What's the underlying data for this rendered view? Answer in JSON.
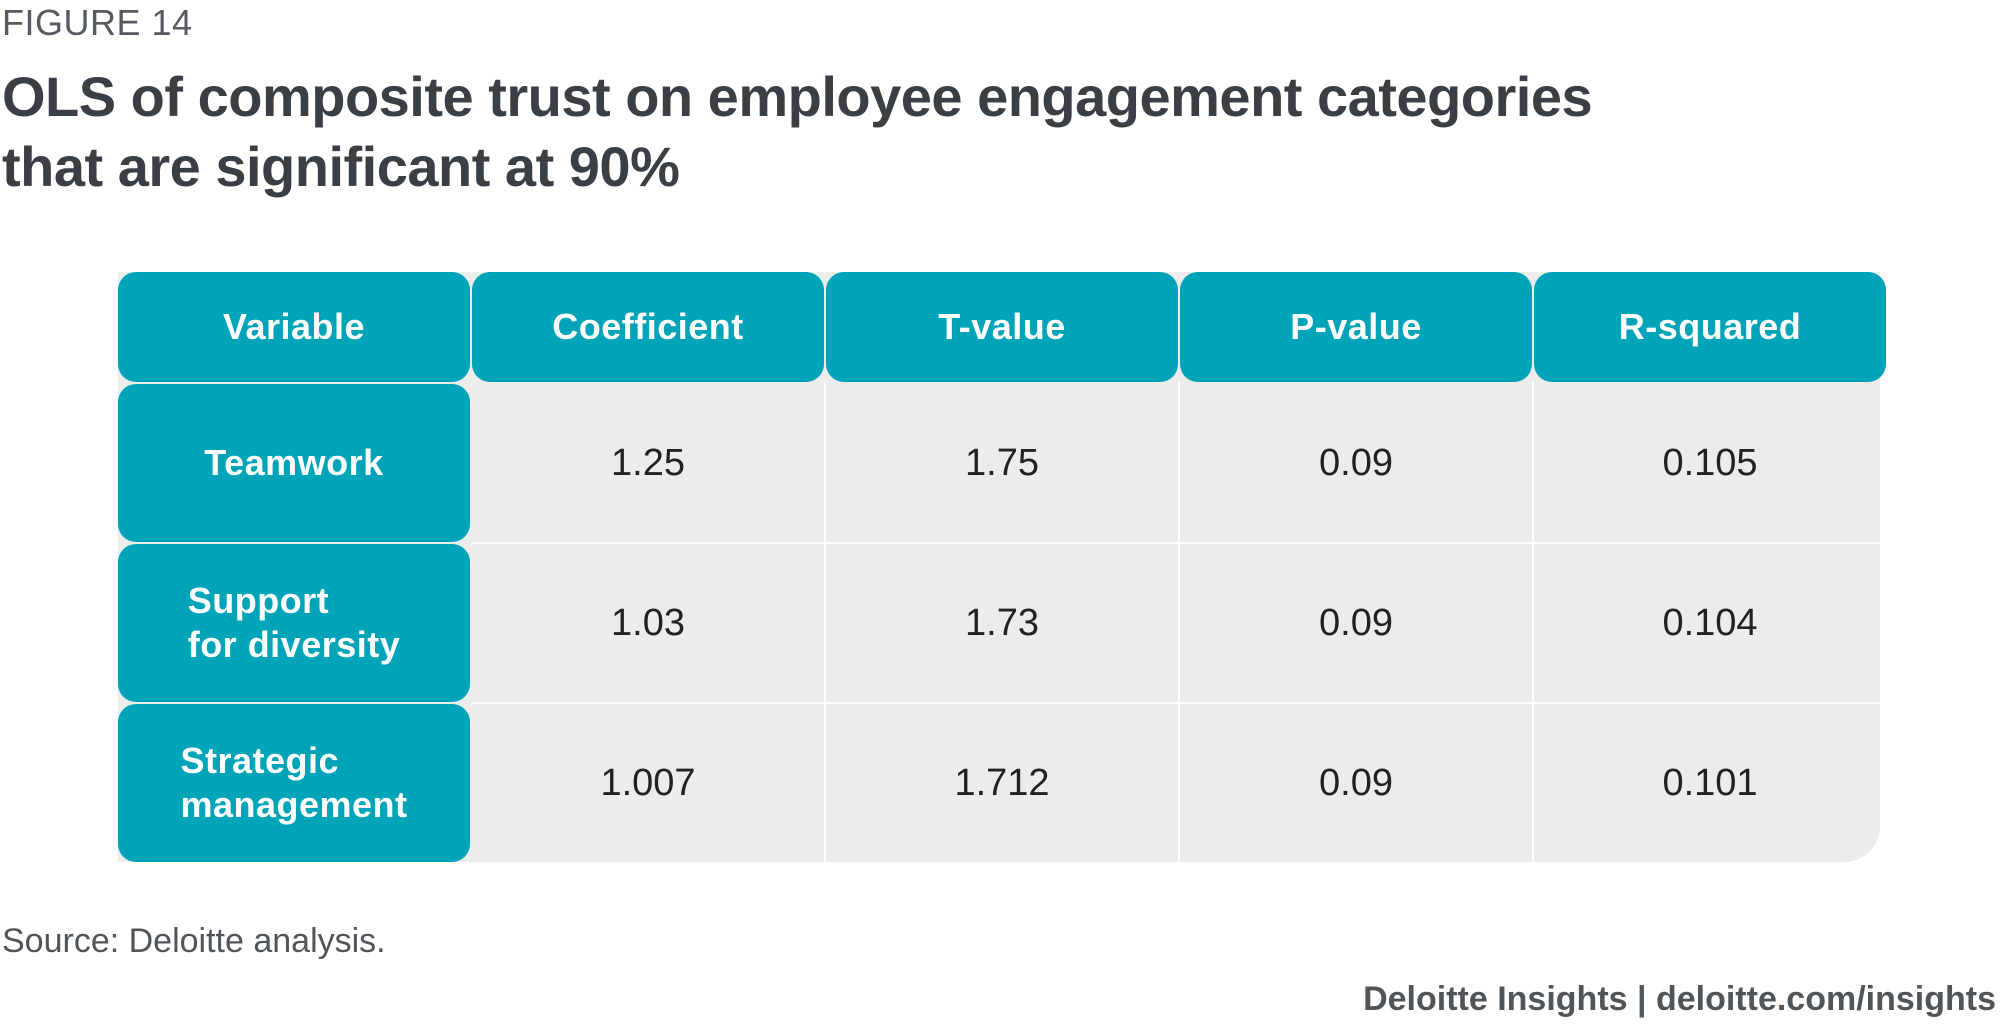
{
  "figure_label": "FIGURE 14",
  "title": "OLS of composite trust on employee engagement categories that are significant at 90%",
  "source": "Source: Deloitte analysis.",
  "brand": "Deloitte Insights | deloitte.com/insights",
  "colors": {
    "header_fill": "#00a4b8",
    "body_fill": "#ececec",
    "header_text": "#ffffff"
  },
  "chart_data": {
    "type": "table",
    "columns": [
      "Variable",
      "Coefficient",
      "T-value",
      "P-value",
      "R-squared"
    ],
    "rows": [
      {
        "variable": "Teamwork",
        "values": [
          "1.25",
          "1.75",
          "0.09",
          "0.105"
        ]
      },
      {
        "variable": "Support\nfor diversity",
        "values": [
          "1.03",
          "1.73",
          "0.09",
          "0.104"
        ]
      },
      {
        "variable": "Strategic\nmanagement",
        "values": [
          "1.007",
          "1.712",
          "0.09",
          "0.101"
        ]
      }
    ]
  }
}
